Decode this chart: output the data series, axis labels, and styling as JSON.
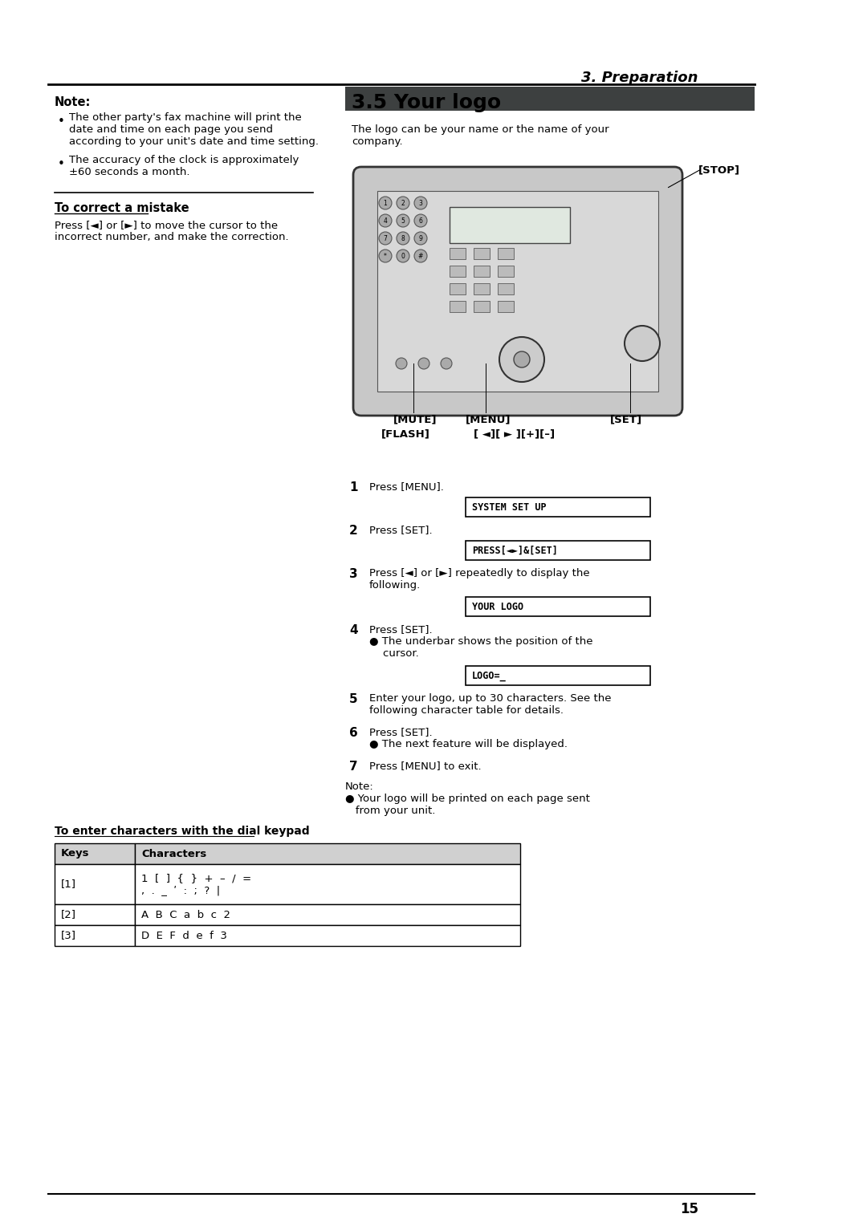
{
  "page_width": 10.8,
  "page_height": 15.28,
  "bg_color": "#ffffff",
  "header_text": "3. Preparation",
  "section_title": "3.5 Your logo",
  "section_subtitle": "The logo can be your name or the name of your\ncompany.",
  "note_title": "Note:",
  "note_bullets": [
    "The other party's fax machine will print the\ndate and time on each page you send\naccording to your unit's date and time setting.",
    "The accuracy of the clock is approximately\n±60 seconds a month."
  ],
  "correct_title": "To correct a mistake",
  "correct_text": "Press [◄] or [►] to move the cursor to the\nincorrect number, and make the correction.",
  "stop_label": "[STOP]",
  "mute_label": "[MUTE]",
  "menu_label": "[MENU]",
  "set_label": "[SET]",
  "flash_label": "[FLASH]",
  "nav_label": "[ ◄][ ► ][+][–]",
  "steps": [
    {
      "num": "1",
      "text": "Press [MENU]."
    },
    {
      "num": "2",
      "text": "Press [SET]."
    },
    {
      "num": "3",
      "text": "Press [◄] or [►] repeatedly to display the\nfollowing."
    },
    {
      "num": "4",
      "text": "Press [SET].\n● The underbar shows the position of the\n    cursor."
    },
    {
      "num": "5",
      "text": "Enter your logo, up to 30 characters. See the\nfollowing character table for details."
    },
    {
      "num": "6",
      "text": "Press [SET].\n● The next feature will be displayed."
    },
    {
      "num": "7",
      "text": "Press [MENU] to exit."
    }
  ],
  "lcd_boxes": [
    {
      "text": "SYSTEM SET UP",
      "after_step": 1
    },
    {
      "text": "PRESS[◄►]&[SET]",
      "after_step": 2
    },
    {
      "text": "YOUR LOGO",
      "after_step": 3
    },
    {
      "text": "LOGO=_",
      "after_step": 4
    }
  ],
  "bottom_note": "Note:\n● Your logo will be printed on each page sent\n   from your unit.",
  "to_enter_title": "To enter characters with the dial keypad",
  "table_headers": [
    "Keys",
    "Characters"
  ],
  "table_rows": [
    [
      "[1]",
      "1  [  ]  {  }  +  –  /  =\n,  .  _  ʹ  :  ;  ?  |"
    ],
    [
      "[2]",
      "A  B  C  a  b  c  2"
    ],
    [
      "[3]",
      "D  E  F  d  e  f  3"
    ]
  ],
  "page_number": "15",
  "dark_header_color": "#3d4040",
  "header_title_color": "#ffffff",
  "table_header_color": "#d0d0d0",
  "border_color": "#000000",
  "text_color": "#000000"
}
